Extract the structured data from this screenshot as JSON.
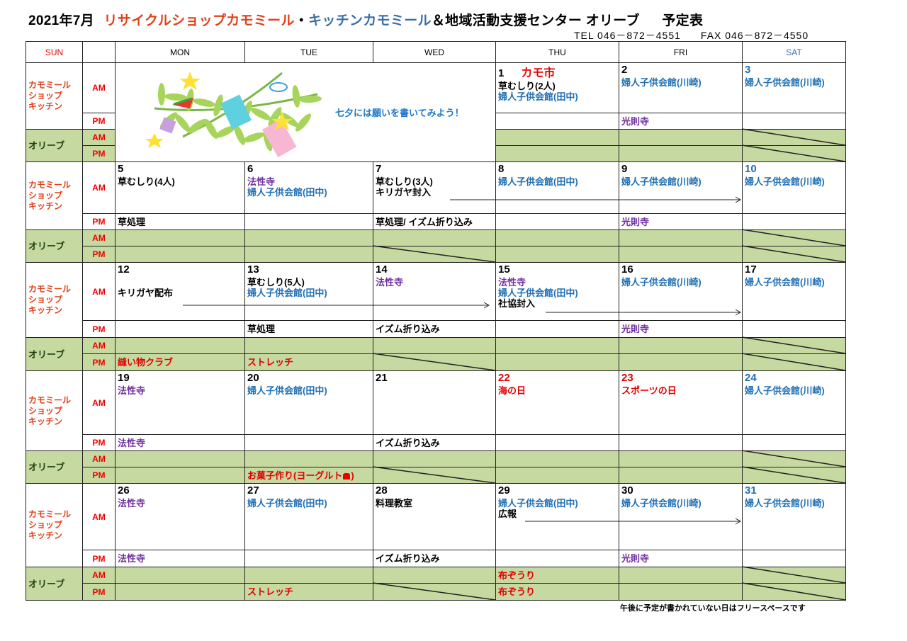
{
  "title": {
    "month": "2021年7月",
    "shop": "リサイクルショップカモミール",
    "sep": "・",
    "kitchen": "キッチンカモミール",
    "center": "＆地域活動支援センター オリーブ",
    "schedule": "予定表"
  },
  "contact": {
    "tel": "TEL 046－872－4551",
    "fax": "FAX 046－872－4550"
  },
  "colors": {
    "shop": "#e0401a",
    "kitchen": "#3a6fa8",
    "blue": "#1f6fb4",
    "purple": "#7030a0",
    "red": "#e00000",
    "olive_bg": "#c6d9a0"
  },
  "header": {
    "sun": "SUN",
    "days": [
      "MON",
      "TUE",
      "WED",
      "THU",
      "FRI",
      "SAT"
    ]
  },
  "labels": {
    "chamomile": "カモミール\nショップ\nキッチン",
    "olive": "オリーブ",
    "am": "AM",
    "pm": "PM"
  },
  "tanabata": {
    "text": "七夕には願いを書いてみよう！",
    "icon": "tanabata-bamboo-illustration"
  },
  "footer": "午後に予定が書かれていない日はフリースペースです",
  "weeks": [
    {
      "days": [
        null,
        null,
        null,
        {
          "date": "1",
          "note": "カモ市",
          "am": [
            {
              "text": "草むしり(2人)"
            },
            {
              "text": "婦人子供会館(田中)",
              "color": "blue"
            }
          ],
          "pm": [],
          "olive_am": [],
          "olive_pm": []
        },
        {
          "date": "2",
          "am": [
            {
              "text": "婦人子供会館(川崎)",
              "color": "blue"
            }
          ],
          "pm": [
            {
              "text": "光則寺",
              "color": "purple"
            }
          ],
          "olive_am": [],
          "olive_pm": []
        },
        {
          "date": "3",
          "date_color": "blue",
          "am": [
            {
              "text": "婦人子供会館(川崎)",
              "color": "blue"
            }
          ],
          "pm": [],
          "olive_am": [],
          "olive_pm": []
        }
      ]
    },
    {
      "days": [
        {
          "date": "5",
          "am": [
            {
              "text": "草むしり(4人)"
            }
          ],
          "pm": [
            {
              "text": "草処理"
            }
          ],
          "olive_am": [],
          "olive_pm": []
        },
        {
          "date": "6",
          "am": [
            {
              "text": "法性寺",
              "color": "purple"
            },
            {
              "text": "婦人子供会館(田中)",
              "color": "blue"
            }
          ],
          "pm": [],
          "olive_am": [],
          "olive_pm": []
        },
        {
          "date": "7",
          "am": [
            {
              "text": "草むしり(3人)"
            },
            {
              "text": "キリガヤ封入"
            }
          ],
          "pm": [
            {
              "text": "草処理/ イズム折り込み"
            }
          ],
          "olive_am": [],
          "olive_pm": []
        },
        {
          "date": "8",
          "am": [
            {
              "text": "婦人子供会館(田中)",
              "color": "blue"
            }
          ],
          "pm": [],
          "olive_am": [],
          "olive_pm": []
        },
        {
          "date": "9",
          "am": [
            {
              "text": "婦人子供会館(川崎)",
              "color": "blue"
            }
          ],
          "pm": [
            {
              "text": "光則寺",
              "color": "purple"
            }
          ],
          "olive_am": [],
          "olive_pm": []
        },
        {
          "date": "10",
          "date_color": "blue",
          "am": [
            {
              "text": "婦人子供会館(川崎)",
              "color": "blue"
            }
          ],
          "pm": [],
          "olive_am": [],
          "olive_pm": []
        }
      ]
    },
    {
      "days": [
        {
          "date": "12",
          "am": [
            {
              "text": ""
            },
            {
              "text": "キリガヤ配布"
            }
          ],
          "pm": [],
          "olive_am": [],
          "olive_pm": [
            {
              "text": "縫い物クラブ",
              "color": "red"
            }
          ]
        },
        {
          "date": "13",
          "am": [
            {
              "text": "草むしり(5人)"
            },
            {
              "text": "婦人子供会館(田中)",
              "color": "blue"
            }
          ],
          "pm": [
            {
              "text": "草処理"
            }
          ],
          "olive_am": [],
          "olive_pm": [
            {
              "text": "ストレッチ",
              "color": "red"
            }
          ]
        },
        {
          "date": "14",
          "am": [
            {
              "text": "法性寺",
              "color": "purple"
            }
          ],
          "pm": [
            {
              "text": "イズム折り込み"
            }
          ],
          "olive_am": [],
          "olive_pm": []
        },
        {
          "date": "15",
          "am": [
            {
              "text": "法性寺",
              "color": "purple"
            },
            {
              "text": "婦人子供会館(田中)",
              "color": "blue"
            },
            {
              "text": "社協封入"
            }
          ],
          "pm": [],
          "olive_am": [],
          "olive_pm": []
        },
        {
          "date": "16",
          "am": [
            {
              "text": "婦人子供会館(川崎)",
              "color": "blue"
            }
          ],
          "pm": [
            {
              "text": "光則寺",
              "color": "purple"
            }
          ],
          "olive_am": [],
          "olive_pm": []
        },
        {
          "date": "17",
          "am": [
            {
              "text": "婦人子供会館(川崎)",
              "color": "blue"
            }
          ],
          "pm": [],
          "olive_am": [],
          "olive_pm": []
        }
      ]
    },
    {
      "days": [
        {
          "date": "19",
          "am": [
            {
              "text": "法性寺",
              "color": "purple"
            }
          ],
          "pm": [
            {
              "text": "法性寺",
              "color": "purple"
            }
          ],
          "olive_am": [],
          "olive_pm": []
        },
        {
          "date": "20",
          "am": [
            {
              "text": "婦人子供会館(田中)",
              "color": "blue"
            }
          ],
          "pm": [],
          "olive_am": [],
          "olive_pm": [
            {
              "text": "お菓子作り(ヨーグルト",
              "icon": "bag-icon",
              "suffix": ")",
              "color": "red"
            }
          ]
        },
        {
          "date": "21",
          "am": [],
          "pm": [
            {
              "text": "イズム折り込み"
            }
          ],
          "olive_am": [],
          "olive_pm": []
        },
        {
          "date": "22",
          "date_color": "red",
          "am": [
            {
              "text": "海の日",
              "color": "red"
            }
          ],
          "pm": [],
          "olive_am": [],
          "olive_pm": []
        },
        {
          "date": "23",
          "date_color": "red",
          "am": [
            {
              "text": "スポーツの日",
              "color": "red"
            }
          ],
          "pm": [],
          "olive_am": [],
          "olive_pm": []
        },
        {
          "date": "24",
          "date_color": "blue",
          "am": [
            {
              "text": "婦人子供会館(川崎)",
              "color": "blue"
            }
          ],
          "pm": [],
          "olive_am": [],
          "olive_pm": []
        }
      ]
    },
    {
      "days": [
        {
          "date": "26",
          "am": [
            {
              "text": "法性寺",
              "color": "purple"
            }
          ],
          "pm": [
            {
              "text": "法性寺",
              "color": "purple"
            }
          ],
          "olive_am": [],
          "olive_pm": []
        },
        {
          "date": "27",
          "am": [
            {
              "text": "婦人子供会館(田中)",
              "color": "blue"
            }
          ],
          "pm": [],
          "olive_am": [],
          "olive_pm": [
            {
              "text": "ストレッチ",
              "color": "red"
            }
          ]
        },
        {
          "date": "28",
          "am": [
            {
              "text": "料理教室"
            }
          ],
          "pm": [
            {
              "text": "イズム折り込み"
            }
          ],
          "olive_am": [],
          "olive_pm": []
        },
        {
          "date": "29",
          "am": [
            {
              "text": "婦人子供会館(田中)",
              "color": "blue"
            },
            {
              "text": "広報"
            }
          ],
          "pm": [],
          "olive_am": [
            {
              "text": "布ぞうり",
              "color": "red"
            }
          ],
          "olive_pm": [
            {
              "text": "布ぞうり",
              "color": "red"
            }
          ]
        },
        {
          "date": "30",
          "am": [
            {
              "text": "婦人子供会館(川崎)",
              "color": "blue"
            }
          ],
          "pm": [
            {
              "text": "光則寺",
              "color": "purple"
            }
          ],
          "olive_am": [],
          "olive_pm": []
        },
        {
          "date": "31",
          "date_color": "blue",
          "am": [
            {
              "text": "婦人子供会館(川崎)",
              "color": "blue"
            }
          ],
          "pm": [],
          "olive_am": [],
          "olive_pm": []
        }
      ]
    }
  ]
}
